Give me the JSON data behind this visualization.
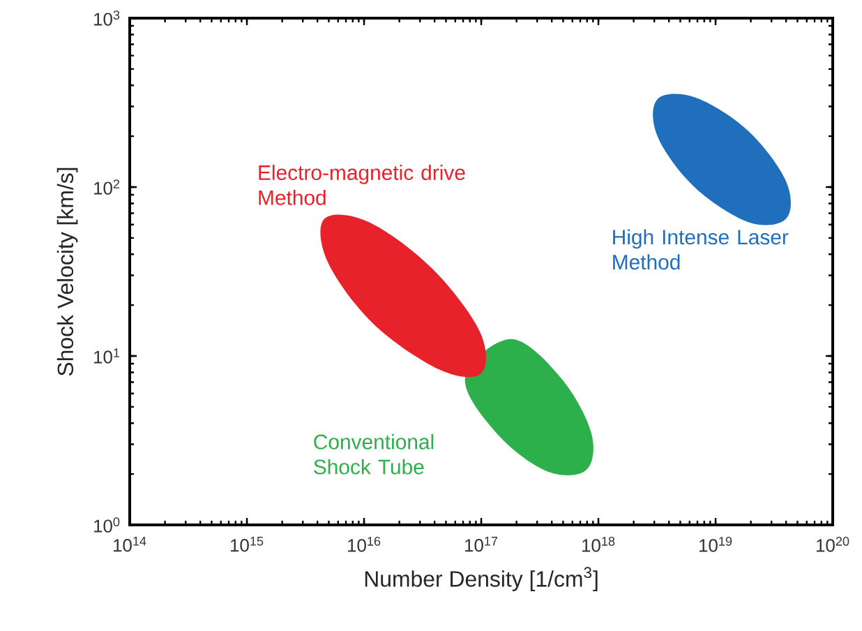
{
  "chart_data": {
    "type": "area",
    "xlabel": "Number Density [1/cm$^{3}$]",
    "ylabel": "Shock Velocity [km/s]",
    "log": "xy",
    "xlim": [
      100000000000000.0,
      1e+20
    ],
    "ylim": [
      1,
      1000
    ],
    "xticks": [
      {
        "value": 100000000000000.0,
        "label": "10$^{14}$"
      },
      {
        "value": 1000000000000000.0,
        "label": "10$^{15}$"
      },
      {
        "value": 1e+16,
        "label": "10$^{16}$"
      },
      {
        "value": 1e+17,
        "label": "10$^{17}$"
      },
      {
        "value": 1e+18,
        "label": "10$^{18}$"
      },
      {
        "value": 1e+19,
        "label": "10$^{19}$"
      },
      {
        "value": 1e+20,
        "label": "10$^{20}$"
      }
    ],
    "yticks": [
      {
        "value": 1,
        "label": "10$^{0}$"
      },
      {
        "value": 10,
        "label": "10$^{1}$"
      },
      {
        "value": 100,
        "label": "10$^{2}$"
      },
      {
        "value": 1000,
        "label": "10$^{3}$"
      }
    ],
    "series": [
      {
        "name": "Conventional Shock Tube",
        "color": "#2db04b",
        "x": [
          7.8e+17,
          8.7e+17,
          4.8e+17,
          1.8e+17,
          8.2e+16,
          7.3e+16,
          1.3e+17,
          3.5e+17
        ],
        "values": [
          2.1,
          3.5,
          7.4,
          12.6,
          null,
          7.5,
          3.6,
          2.1
        ]
      },
      {
        "name": "Electro-magnetic drive Method",
        "color": "#e8222a",
        "x": [
          1e+17,
          9.7e+16,
          3.8e+16,
          1.1e+16,
          4600000000000000.0,
          4900000000000000.0,
          1.2e+16,
          4.4e+16
        ],
        "values": [
          7.9,
          14,
          33,
          62,
          65,
          36,
          15.5,
          8.3
        ]
      },
      {
        "name": "High Intense Laser Method",
        "color": "#1f6fbd",
        "x": [
          4e+19,
          4e+19,
          1.9e+19,
          6.8e+18,
          3.2e+18,
          3.2e+18,
          6.6e+18,
          1.9e+19
        ],
        "values": [
          65,
          108,
          215,
          338,
          332,
          199,
          100,
          62
        ]
      }
    ]
  }
}
